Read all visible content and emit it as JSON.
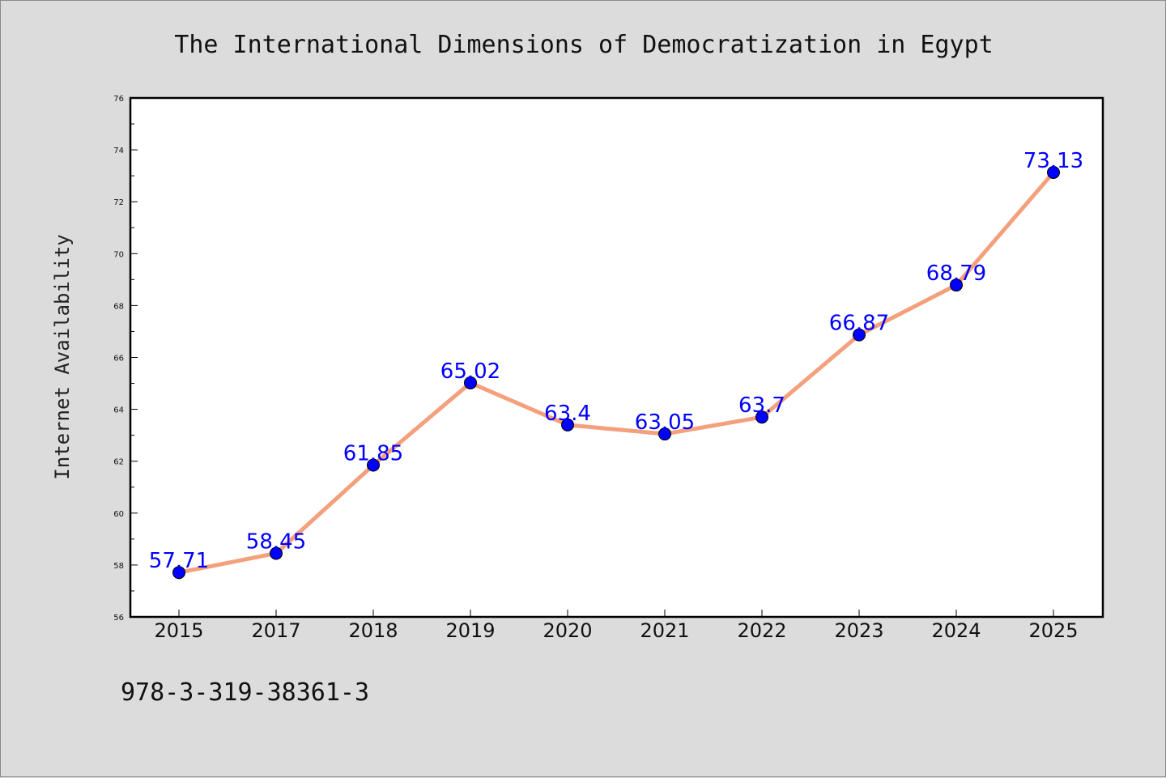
{
  "chart_data": {
    "type": "line",
    "title": "The International Dimensions of Democratization in Egypt",
    "xlabel": "",
    "ylabel": "Internet Availability",
    "categories": [
      "2015",
      "2017",
      "2018",
      "2019",
      "2020",
      "2021",
      "2022",
      "2023",
      "2024",
      "2025"
    ],
    "series": [
      {
        "values": [
          57.71,
          58.45,
          61.85,
          65.02,
          63.4,
          63.05,
          63.7,
          66.87,
          68.79,
          73.13
        ],
        "data_labels": [
          "57.71",
          "58.45",
          "61.85",
          "65.02",
          "63.4",
          "63.05",
          "63.7",
          "66.87",
          "68.79",
          "73.13"
        ]
      }
    ],
    "ylim": [
      56,
      76
    ],
    "yticks": [
      "56",
      "58",
      "60",
      "62",
      "64",
      "66",
      "68",
      "70",
      "72",
      "74",
      "76"
    ],
    "grid": false,
    "legend": "none",
    "colors": {
      "line": "#f4a07c",
      "marker": "#0000ff",
      "data_label": "#0000ff",
      "plot_background": "#ffffff",
      "page_background": "#dcdcdc"
    }
  },
  "footer": {
    "text": "978-3-319-38361-3"
  }
}
